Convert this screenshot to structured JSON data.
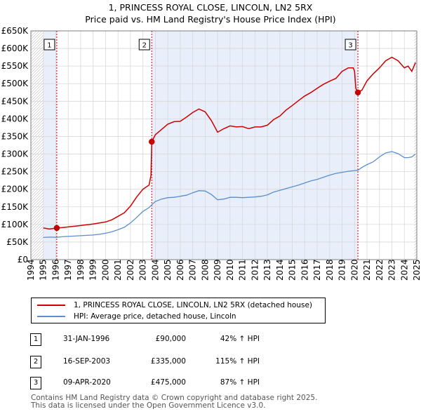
{
  "title": {
    "line1": "1, PRINCESS ROYAL CLOSE, LINCOLN, LN2 5RX",
    "line2": "Price paid vs. HM Land Registry's House Price Index (HPI)"
  },
  "colors": {
    "price": "#cc0000",
    "hpi": "#5a8fcb",
    "shade": "#e8eefa",
    "grid": "#d8d8d8",
    "vline": "#cc0000"
  },
  "legend": {
    "price_label": "1, PRINCESS ROYAL CLOSE, LINCOLN, LN2 5RX (detached house)",
    "hpi_label": "HPI: Average price, detached house, Lincoln"
  },
  "sales": [
    {
      "num": "1",
      "date": "31-JAN-1996",
      "price": "£90,000",
      "hpi": "42% ↑ HPI"
    },
    {
      "num": "2",
      "date": "16-SEP-2003",
      "price": "£335,000",
      "hpi": "115% ↑ HPI"
    },
    {
      "num": "3",
      "date": "09-APR-2020",
      "price": "£475,000",
      "hpi": "87% ↑ HPI"
    }
  ],
  "footer": {
    "line1": "Contains HM Land Registry data © Crown copyright and database right 2025.",
    "line2": "This data is licensed under the Open Government Licence v3.0."
  },
  "chart_data": {
    "type": "line",
    "title": "1, PRINCESS ROYAL CLOSE, LINCOLN, LN2 5RX — Price paid vs. HM Land Registry's House Price Index (HPI)",
    "xlim": [
      1994,
      2025
    ],
    "ylim": [
      0,
      650000
    ],
    "x_ticks": [
      1994,
      1995,
      1996,
      1997,
      1998,
      1999,
      2000,
      2001,
      2002,
      2003,
      2004,
      2005,
      2006,
      2007,
      2008,
      2009,
      2010,
      2011,
      2012,
      2013,
      2014,
      2015,
      2016,
      2017,
      2018,
      2019,
      2020,
      2021,
      2022,
      2023,
      2024,
      2025
    ],
    "y_ticks": [
      {
        "v": 0,
        "label": "£0"
      },
      {
        "v": 50000,
        "label": "£50K"
      },
      {
        "v": 100000,
        "label": "£100K"
      },
      {
        "v": 150000,
        "label": "£150K"
      },
      {
        "v": 200000,
        "label": "£200K"
      },
      {
        "v": 250000,
        "label": "£250K"
      },
      {
        "v": 300000,
        "label": "£300K"
      },
      {
        "v": 350000,
        "label": "£350K"
      },
      {
        "v": 400000,
        "label": "£400K"
      },
      {
        "v": 450000,
        "label": "£450K"
      },
      {
        "v": 500000,
        "label": "£500K"
      },
      {
        "v": 550000,
        "label": "£550K"
      },
      {
        "v": 600000,
        "label": "£600K"
      },
      {
        "v": 650000,
        "label": "£650K"
      }
    ],
    "shaded_ranges": [
      [
        1995.0,
        1996.08
      ],
      [
        2003.71,
        2020.27
      ]
    ],
    "hatched_ranges": [
      [
        1994.0,
        1995.0
      ],
      [
        2024.8,
        2025.0
      ]
    ],
    "markers": [
      {
        "label": "1",
        "x": 1996.08,
        "y": 90000
      },
      {
        "label": "2",
        "x": 2003.71,
        "y": 335000
      },
      {
        "label": "3",
        "x": 2020.27,
        "y": 475000
      }
    ],
    "series": [
      {
        "name": "1, PRINCESS ROYAL CLOSE, LINCOLN, LN2 5RX (detached house)",
        "x": [
          1995.0,
          1995.5,
          1996.08,
          1996.5,
          1997,
          1997.5,
          1998,
          1998.5,
          1999,
          1999.5,
          2000,
          2000.5,
          2001,
          2001.5,
          2002,
          2002.5,
          2003,
          2003.5,
          2003.65,
          2003.71,
          2004,
          2004.5,
          2005,
          2005.5,
          2006,
          2006.5,
          2007,
          2007.5,
          2008,
          2008.5,
          2009,
          2009.5,
          2010,
          2010.5,
          2011,
          2011.5,
          2012,
          2012.5,
          2013,
          2013.5,
          2014,
          2014.5,
          2015,
          2015.5,
          2016,
          2016.5,
          2017,
          2017.5,
          2018,
          2018.5,
          2019,
          2019.5,
          2019.9,
          2020.0,
          2020.1,
          2020.27,
          2020.6,
          2021,
          2021.5,
          2022,
          2022.5,
          2023,
          2023.5,
          2024,
          2024.3,
          2024.6,
          2024.9
        ],
        "y": [
          90000,
          87000,
          90000,
          91000,
          93000,
          95000,
          97000,
          99000,
          101000,
          104000,
          107000,
          113000,
          123000,
          133000,
          152000,
          178000,
          200000,
          212000,
          240000,
          335000,
          355000,
          370000,
          385000,
          392000,
          393000,
          405000,
          418000,
          428000,
          420000,
          395000,
          362000,
          372000,
          380000,
          377000,
          378000,
          372000,
          377000,
          377000,
          382000,
          398000,
          408000,
          425000,
          438000,
          452000,
          465000,
          475000,
          487000,
          498000,
          507000,
          515000,
          535000,
          545000,
          545000,
          535000,
          487000,
          475000,
          482000,
          508000,
          528000,
          545000,
          565000,
          575000,
          565000,
          545000,
          550000,
          535000,
          560000
        ]
      },
      {
        "name": "HPI: Average price, detached house, Lincoln",
        "x": [
          1995.0,
          1995.5,
          1996.08,
          1996.5,
          1997,
          1997.5,
          1998,
          1998.5,
          1999,
          1999.5,
          2000,
          2000.5,
          2001,
          2001.5,
          2002,
          2002.5,
          2003,
          2003.5,
          2003.71,
          2004,
          2004.5,
          2005,
          2005.5,
          2006,
          2006.5,
          2007,
          2007.5,
          2008,
          2008.5,
          2009,
          2009.5,
          2010,
          2010.5,
          2011,
          2011.5,
          2012,
          2012.5,
          2013,
          2013.5,
          2014,
          2014.5,
          2015,
          2015.5,
          2016,
          2016.5,
          2017,
          2017.5,
          2018,
          2018.5,
          2019,
          2019.5,
          2020,
          2020.27,
          2020.6,
          2021,
          2021.5,
          2022,
          2022.5,
          2023,
          2023.5,
          2024,
          2024.3,
          2024.6,
          2024.9
        ],
        "y": [
          63000,
          64000,
          63500,
          65000,
          66000,
          67000,
          68000,
          69000,
          70000,
          72000,
          75000,
          79000,
          85000,
          92000,
          104000,
          120000,
          137000,
          148000,
          156000,
          165000,
          172000,
          176000,
          177000,
          180000,
          183000,
          190000,
          196000,
          195000,
          185000,
          170000,
          172000,
          177000,
          177000,
          176000,
          177000,
          178000,
          180000,
          184000,
          192000,
          197000,
          202000,
          207000,
          212000,
          218000,
          224000,
          228000,
          234000,
          240000,
          245000,
          248000,
          251000,
          253000,
          254000,
          262000,
          270000,
          278000,
          292000,
          303000,
          307000,
          301000,
          290000,
          290000,
          292000,
          300000
        ]
      }
    ]
  }
}
